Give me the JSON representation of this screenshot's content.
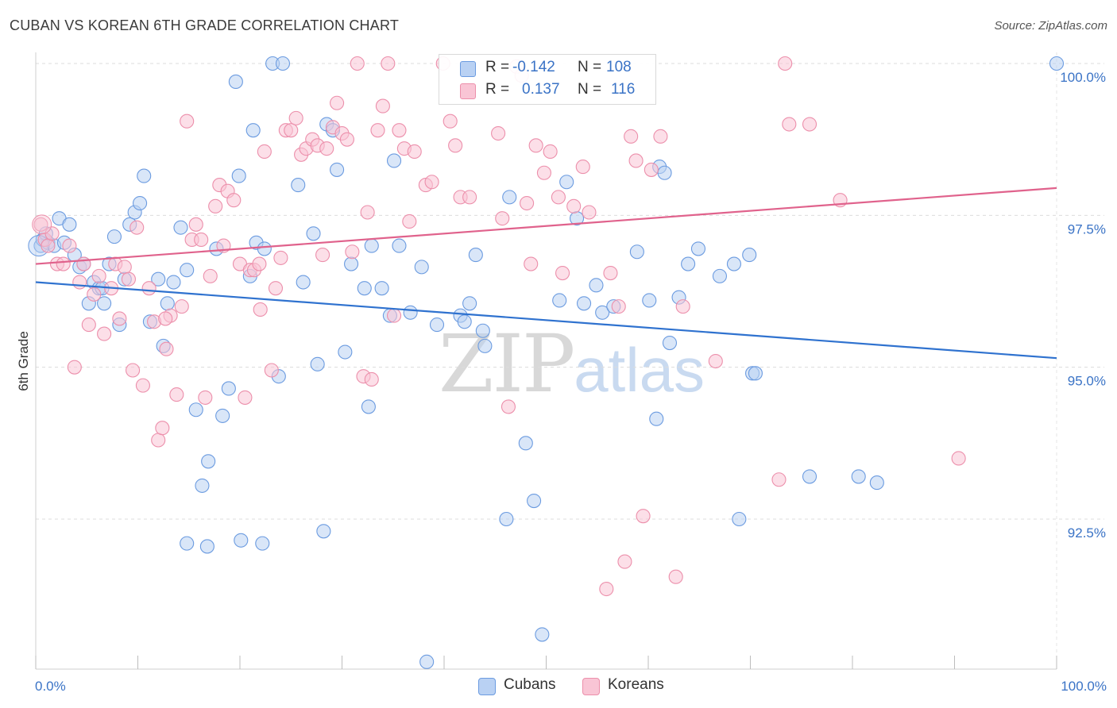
{
  "title": "CUBAN VS KOREAN 6TH GRADE CORRELATION CHART",
  "source": "Source: ZipAtlas.com",
  "watermark": {
    "zip": "ZIP",
    "atlas": "atlas"
  },
  "stats": [
    {
      "r_label": "R =",
      "r_value": "-0.142",
      "n_label": "N =",
      "n_value": "108",
      "fill": "#b9d1f3",
      "stroke": "#6b9be0"
    },
    {
      "r_label": "R =",
      "r_value": "0.137",
      "n_label": "N =",
      "n_value": "116",
      "fill": "#f9c5d5",
      "stroke": "#ec8fab"
    }
  ],
  "legend": [
    {
      "label": "Cubans",
      "fill": "#b9d1f3",
      "stroke": "#6b9be0"
    },
    {
      "label": "Koreans",
      "fill": "#f9c5d5",
      "stroke": "#ec8fab"
    }
  ],
  "chart_data": {
    "type": "scatter",
    "title": "CUBAN VS KOREAN 6TH GRADE CORRELATION CHART",
    "xlabel": "",
    "ylabel": "6th Grade",
    "xlim": [
      0,
      100
    ],
    "ylim": [
      90.1,
      100.2
    ],
    "x_tick_labels": [
      "0.0%",
      "100.0%"
    ],
    "y_ticks": [
      92.5,
      95.0,
      97.5,
      100.0
    ],
    "y_tick_labels": [
      "92.5%",
      "95.0%",
      "97.5%",
      "100.0%"
    ],
    "grid": true,
    "legend_position": "bottom-center",
    "series": [
      {
        "name": "Cubans",
        "color": "#6b9be0",
        "fill": "#b9d1f3",
        "trend_color": "#2f72cf",
        "trend": {
          "x": [
            0,
            100
          ],
          "y": [
            96.4,
            95.15
          ]
        },
        "points": [
          [
            0.5,
            97.0
          ],
          [
            1.2,
            97.05
          ],
          [
            1.8,
            97.0
          ],
          [
            2.3,
            97.45
          ],
          [
            2.8,
            97.05
          ],
          [
            3.3,
            97.35
          ],
          [
            3.8,
            96.85
          ],
          [
            4.3,
            96.65
          ],
          [
            4.7,
            96.7
          ],
          [
            5.2,
            96.05
          ],
          [
            5.7,
            96.4
          ],
          [
            6.2,
            96.3
          ],
          [
            6.7,
            96.05
          ],
          [
            7.2,
            96.7
          ],
          [
            7.7,
            97.15
          ],
          [
            8.2,
            95.7
          ],
          [
            8.7,
            96.45
          ],
          [
            9.2,
            97.35
          ],
          [
            9.7,
            97.55
          ],
          [
            10.2,
            97.7
          ],
          [
            10.6,
            98.15
          ],
          [
            11.2,
            95.75
          ],
          [
            12.0,
            96.45
          ],
          [
            12.5,
            95.35
          ],
          [
            12.9,
            96.05
          ],
          [
            13.5,
            96.4
          ],
          [
            14.2,
            97.3
          ],
          [
            14.8,
            96.6
          ],
          [
            15.7,
            94.3
          ],
          [
            16.3,
            93.05
          ],
          [
            16.9,
            93.45
          ],
          [
            17.7,
            96.95
          ],
          [
            18.3,
            94.2
          ],
          [
            18.9,
            94.65
          ],
          [
            19.6,
            99.7
          ],
          [
            19.9,
            98.15
          ],
          [
            21.0,
            96.5
          ],
          [
            21.3,
            98.9
          ],
          [
            21.6,
            97.05
          ],
          [
            22.4,
            96.95
          ],
          [
            23.2,
            100.0
          ],
          [
            23.8,
            94.85
          ],
          [
            24.2,
            100.0
          ],
          [
            25.7,
            98.0
          ],
          [
            26.2,
            96.4
          ],
          [
            27.2,
            97.2
          ],
          [
            27.6,
            95.05
          ],
          [
            28.2,
            92.3
          ],
          [
            28.5,
            99.0
          ],
          [
            29.1,
            98.9
          ],
          [
            29.5,
            98.25
          ],
          [
            30.3,
            95.25
          ],
          [
            30.9,
            96.7
          ],
          [
            32.2,
            96.3
          ],
          [
            32.6,
            94.35
          ],
          [
            32.9,
            97.0
          ],
          [
            33.9,
            96.3
          ],
          [
            34.7,
            95.85
          ],
          [
            35.1,
            98.4
          ],
          [
            35.6,
            97.0
          ],
          [
            36.7,
            95.9
          ],
          [
            37.8,
            96.65
          ],
          [
            38.3,
            90.15
          ],
          [
            39.3,
            95.7
          ],
          [
            41.6,
            95.85
          ],
          [
            42.0,
            95.75
          ],
          [
            42.5,
            96.05
          ],
          [
            43.1,
            96.85
          ],
          [
            43.8,
            95.6
          ],
          [
            44.0,
            95.35
          ],
          [
            46.1,
            92.5
          ],
          [
            46.4,
            97.8
          ],
          [
            48.0,
            93.75
          ],
          [
            48.8,
            92.8
          ],
          [
            49.6,
            90.6
          ],
          [
            51.3,
            96.1
          ],
          [
            52.0,
            98.05
          ],
          [
            53.0,
            97.45
          ],
          [
            53.7,
            96.05
          ],
          [
            54.9,
            96.35
          ],
          [
            55.5,
            95.9
          ],
          [
            56.6,
            96.0
          ],
          [
            58.9,
            96.9
          ],
          [
            60.1,
            96.1
          ],
          [
            60.8,
            94.15
          ],
          [
            61.1,
            98.3
          ],
          [
            61.6,
            98.2
          ],
          [
            62.1,
            95.4
          ],
          [
            63.0,
            96.15
          ],
          [
            63.9,
            96.7
          ],
          [
            64.9,
            96.95
          ],
          [
            67.0,
            96.5
          ],
          [
            68.4,
            96.7
          ],
          [
            68.9,
            92.5
          ],
          [
            69.9,
            96.85
          ],
          [
            70.2,
            94.9
          ],
          [
            70.5,
            94.9
          ],
          [
            75.8,
            93.2
          ],
          [
            80.6,
            93.2
          ],
          [
            82.4,
            93.1
          ],
          [
            100.0,
            100.0
          ],
          [
            20.1,
            92.15
          ],
          [
            22.2,
            92.1
          ],
          [
            14.8,
            92.1
          ],
          [
            16.8,
            92.05
          ],
          [
            0.7,
            97.1
          ],
          [
            1.0,
            97.2
          ],
          [
            6.5,
            96.3
          ]
        ]
      },
      {
        "name": "Koreans",
        "color": "#ec8fab",
        "fill": "#f9c5d5",
        "trend_color": "#e0628c",
        "trend": {
          "x": [
            0,
            100
          ],
          "y": [
            96.7,
            97.95
          ]
        },
        "points": [
          [
            0.5,
            97.35
          ],
          [
            0.9,
            97.1
          ],
          [
            1.2,
            97.0
          ],
          [
            1.6,
            97.2
          ],
          [
            2.1,
            96.7
          ],
          [
            2.7,
            96.7
          ],
          [
            3.3,
            97.0
          ],
          [
            3.8,
            95.0
          ],
          [
            4.3,
            96.4
          ],
          [
            4.7,
            96.7
          ],
          [
            5.2,
            95.7
          ],
          [
            5.7,
            96.2
          ],
          [
            6.2,
            96.5
          ],
          [
            6.7,
            95.55
          ],
          [
            7.4,
            96.3
          ],
          [
            7.8,
            96.7
          ],
          [
            8.2,
            95.8
          ],
          [
            8.7,
            96.65
          ],
          [
            9.1,
            96.45
          ],
          [
            9.5,
            94.95
          ],
          [
            9.9,
            97.3
          ],
          [
            10.5,
            94.7
          ],
          [
            11.1,
            96.3
          ],
          [
            11.6,
            95.75
          ],
          [
            12.0,
            93.8
          ],
          [
            12.4,
            94.0
          ],
          [
            12.8,
            95.3
          ],
          [
            13.2,
            95.85
          ],
          [
            13.8,
            94.55
          ],
          [
            14.3,
            96.0
          ],
          [
            14.8,
            99.05
          ],
          [
            15.3,
            97.1
          ],
          [
            15.7,
            97.35
          ],
          [
            16.2,
            97.1
          ],
          [
            16.6,
            94.5
          ],
          [
            17.1,
            96.5
          ],
          [
            17.6,
            97.65
          ],
          [
            18.0,
            98.0
          ],
          [
            18.4,
            97.0
          ],
          [
            18.8,
            97.9
          ],
          [
            19.4,
            97.75
          ],
          [
            20.0,
            96.7
          ],
          [
            20.5,
            94.5
          ],
          [
            21.0,
            96.6
          ],
          [
            21.4,
            96.6
          ],
          [
            21.9,
            96.7
          ],
          [
            22.4,
            98.55
          ],
          [
            23.1,
            94.95
          ],
          [
            23.5,
            96.3
          ],
          [
            24.0,
            96.8
          ],
          [
            24.5,
            98.9
          ],
          [
            25.0,
            98.9
          ],
          [
            25.5,
            99.1
          ],
          [
            26.0,
            98.5
          ],
          [
            26.5,
            98.6
          ],
          [
            27.1,
            98.75
          ],
          [
            27.6,
            98.65
          ],
          [
            28.1,
            96.85
          ],
          [
            28.5,
            98.6
          ],
          [
            29.1,
            98.95
          ],
          [
            29.5,
            99.35
          ],
          [
            30.0,
            98.85
          ],
          [
            30.5,
            98.75
          ],
          [
            31.0,
            96.9
          ],
          [
            31.5,
            100.0
          ],
          [
            32.1,
            94.85
          ],
          [
            32.5,
            97.55
          ],
          [
            32.9,
            94.8
          ],
          [
            33.5,
            98.9
          ],
          [
            34.0,
            99.3
          ],
          [
            34.5,
            100.0
          ],
          [
            35.1,
            95.85
          ],
          [
            35.6,
            98.9
          ],
          [
            36.1,
            98.6
          ],
          [
            36.6,
            97.4
          ],
          [
            37.1,
            98.55
          ],
          [
            38.2,
            98.0
          ],
          [
            38.8,
            98.05
          ],
          [
            39.9,
            100.0
          ],
          [
            40.6,
            99.05
          ],
          [
            41.1,
            98.65
          ],
          [
            41.6,
            97.8
          ],
          [
            42.5,
            97.8
          ],
          [
            45.3,
            98.85
          ],
          [
            45.7,
            97.45
          ],
          [
            46.3,
            94.35
          ],
          [
            47.1,
            99.95
          ],
          [
            47.6,
            99.8
          ],
          [
            48.1,
            97.7
          ],
          [
            48.5,
            96.7
          ],
          [
            49.0,
            98.65
          ],
          [
            49.8,
            98.2
          ],
          [
            50.4,
            98.55
          ],
          [
            51.2,
            97.8
          ],
          [
            51.6,
            96.55
          ],
          [
            52.7,
            97.65
          ],
          [
            53.6,
            98.3
          ],
          [
            54.2,
            97.55
          ],
          [
            56.3,
            96.55
          ],
          [
            57.1,
            96.0
          ],
          [
            58.3,
            98.8
          ],
          [
            58.8,
            98.4
          ],
          [
            60.3,
            98.25
          ],
          [
            61.2,
            98.8
          ],
          [
            63.4,
            96.0
          ],
          [
            66.6,
            95.1
          ],
          [
            72.8,
            93.15
          ],
          [
            73.4,
            100.0
          ],
          [
            73.8,
            99.0
          ],
          [
            75.8,
            99.0
          ],
          [
            78.8,
            97.75
          ],
          [
            90.4,
            93.5
          ],
          [
            59.5,
            92.55
          ],
          [
            57.7,
            91.8
          ],
          [
            55.9,
            91.35
          ],
          [
            62.7,
            91.55
          ],
          [
            12.7,
            95.8
          ],
          [
            22.0,
            95.95
          ]
        ]
      }
    ]
  }
}
